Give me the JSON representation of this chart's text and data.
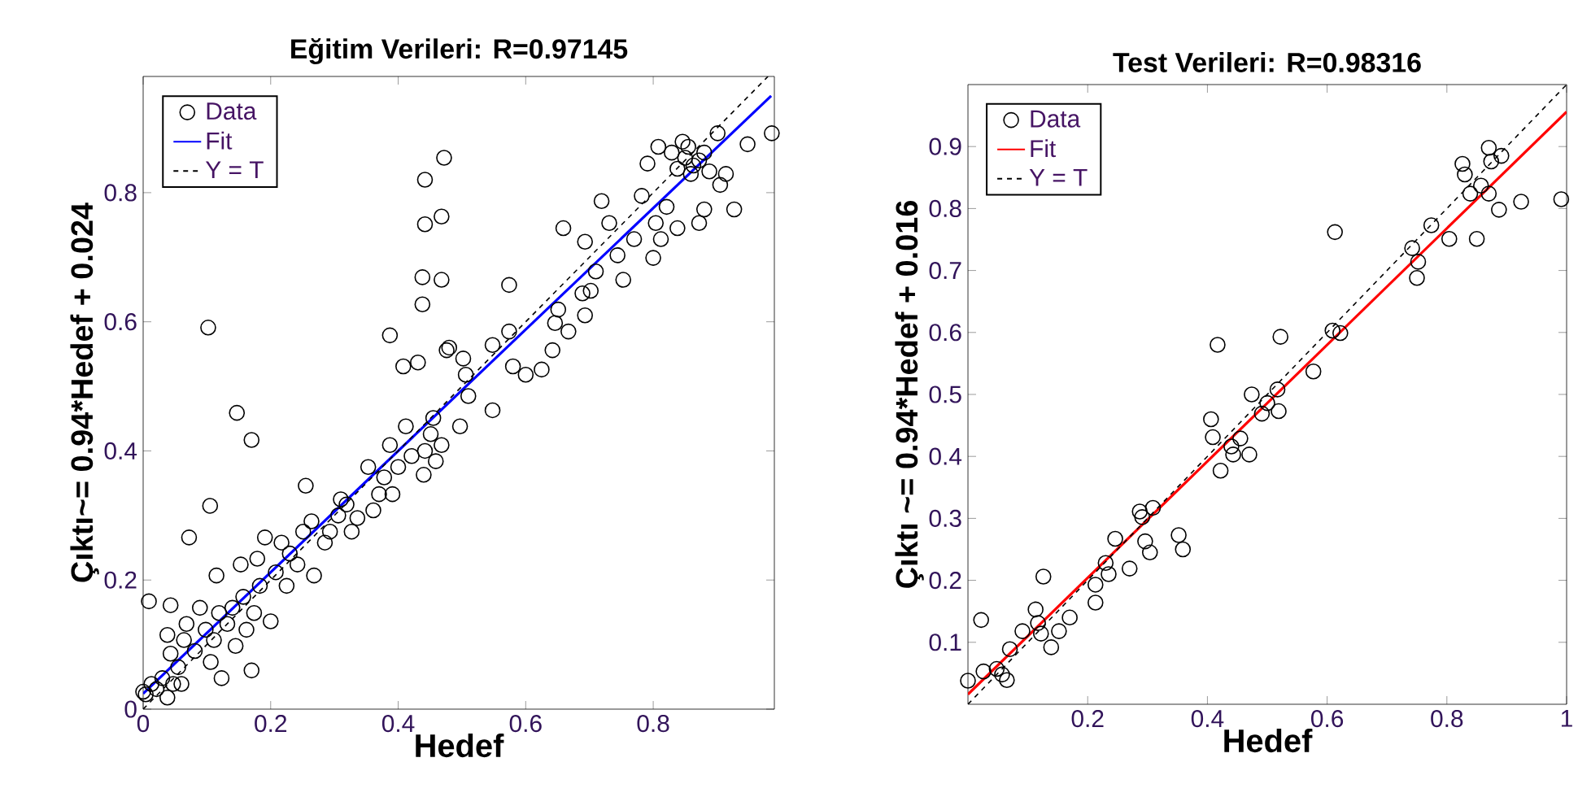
{
  "chart_data": [
    {
      "type": "scatter",
      "title": "Eğitim Verileri: R=0.97145",
      "xlabel": "Hedef",
      "ylabel": "Çıktı~= 0.94*Hedef + 0.024",
      "xlim": [
        0,
        0.99
      ],
      "ylim": [
        0,
        0.98
      ],
      "xticks": [
        0,
        0.2,
        0.4,
        0.6,
        0.8
      ],
      "yticks": [
        0,
        0.2,
        0.4,
        0.6,
        0.8
      ],
      "grid": false,
      "legend": "top left",
      "series": [
        {
          "name": "Data",
          "color": "#000000",
          "marker": "circle",
          "x": [
            0.102,
            0.147,
            0.17,
            0.105,
            0.072,
            0.255,
            0.009,
            0.043,
            0.17,
            0.123,
            0,
            0.004,
            0.021,
            0.038,
            0.013,
            0.047,
            0.03,
            0.06,
            0.043,
            0.038,
            0.064,
            0.068,
            0.081,
            0.055,
            0.089,
            0.098,
            0.106,
            0.111,
            0.115,
            0.119,
            0.132,
            0.14,
            0.145,
            0.153,
            0.157,
            0.162,
            0.174,
            0.179,
            0.183,
            0.2,
            0.191,
            0.208,
            0.217,
            0.225,
            0.23,
            0.242,
            0.251,
            0.264,
            0.268,
            0.285,
            0.293,
            0.306,
            0.31,
            0.319,
            0.327,
            0.336,
            0.353,
            0.361,
            0.37,
            0.378,
            0.387,
            0.391,
            0.4,
            0.412,
            0.421,
            0.44,
            0.442,
            0.451,
            0.459,
            0.455,
            0.468,
            0.387,
            0.408,
            0.431,
            0.438,
            0.438,
            0.468,
            0.442,
            0.468,
            0.442,
            0.472,
            0.476,
            0.48,
            0.502,
            0.506,
            0.51,
            0.497,
            0.548,
            0.574,
            0.548,
            0.574,
            0.58,
            0.6,
            0.625,
            0.642,
            0.646,
            0.651,
            0.667,
            0.693,
            0.689,
            0.702,
            0.71,
            0.659,
            0.693,
            0.719,
            0.731,
            0.744,
            0.753,
            0.77,
            0.782,
            0.791,
            0.8,
            0.804,
            0.821,
            0.812,
            0.838,
            0.808,
            0.829,
            0.838,
            0.85,
            0.855,
            0.863,
            0.872,
            0.88,
            0.888,
            0.901,
            0.905,
            0.872,
            0.88,
            0.927,
            0.914,
            0.948,
            0.986,
            0.846,
            0.859
          ],
          "values": [
            0.591,
            0.459,
            0.417,
            0.315,
            0.266,
            0.346,
            0.167,
            0.161,
            0.06,
            0.048,
            0.027,
            0.023,
            0.031,
            0.018,
            0.039,
            0.039,
            0.048,
            0.039,
            0.086,
            0.115,
            0.107,
            0.132,
            0.09,
            0.065,
            0.157,
            0.123,
            0.073,
            0.107,
            0.207,
            0.149,
            0.132,
            0.157,
            0.098,
            0.224,
            0.174,
            0.123,
            0.149,
            0.233,
            0.191,
            0.136,
            0.266,
            0.212,
            0.258,
            0.191,
            0.241,
            0.224,
            0.275,
            0.291,
            0.207,
            0.258,
            0.275,
            0.3,
            0.325,
            0.317,
            0.275,
            0.296,
            0.375,
            0.308,
            0.333,
            0.359,
            0.409,
            0.333,
            0.375,
            0.438,
            0.392,
            0.363,
            0.4,
            0.426,
            0.384,
            0.451,
            0.409,
            0.579,
            0.531,
            0.537,
            0.627,
            0.669,
            0.665,
            0.751,
            0.763,
            0.82,
            0.854,
            0.556,
            0.56,
            0.543,
            0.518,
            0.485,
            0.438,
            0.463,
            0.657,
            0.564,
            0.585,
            0.531,
            0.518,
            0.526,
            0.556,
            0.598,
            0.619,
            0.585,
            0.61,
            0.644,
            0.648,
            0.678,
            0.745,
            0.724,
            0.787,
            0.753,
            0.703,
            0.665,
            0.728,
            0.795,
            0.845,
            0.699,
            0.753,
            0.778,
            0.728,
            0.745,
            0.871,
            0.862,
            0.837,
            0.854,
            0.871,
            0.842,
            0.85,
            0.862,
            0.833,
            0.892,
            0.812,
            0.753,
            0.774,
            0.774,
            0.829,
            0.875,
            0.892,
            0.879,
            0.829
          ]
        },
        {
          "name": "Fit",
          "type": "line",
          "color": "#0000ff",
          "line_style": "solid",
          "marker": "none",
          "x": [
            0,
            0.985
          ],
          "values": [
            0.024,
            0.95
          ]
        },
        {
          "name": "Y = T",
          "type": "line",
          "color": "#000000",
          "line_style": "dashed",
          "marker": "none",
          "x": [
            0,
            0.98
          ],
          "values": [
            0,
            0.98
          ]
        }
      ]
    },
    {
      "type": "scatter",
      "title": "Test Verileri: R=0.98316",
      "xlabel": "Hedef",
      "ylabel": "Çıktı ~= 0.94*Hedef + 0.016",
      "xlim": [
        0,
        1
      ],
      "ylim": [
        0,
        1
      ],
      "xticks": [
        0.2,
        0.4,
        0.6,
        0.8,
        1
      ],
      "yticks": [
        0.1,
        0.2,
        0.3,
        0.4,
        0.5,
        0.6,
        0.7,
        0.8,
        0.9
      ],
      "grid": false,
      "legend": "top left",
      "series": [
        {
          "name": "Data",
          "color": "#000000",
          "marker": "circle",
          "x": [
            0,
            0.022,
            0.026,
            0.048,
            0.057,
            0.065,
            0.07,
            0.091,
            0.113,
            0.117,
            0.126,
            0.122,
            0.139,
            0.152,
            0.17,
            0.213,
            0.213,
            0.23,
            0.235,
            0.246,
            0.27,
            0.287,
            0.291,
            0.309,
            0.296,
            0.304,
            0.352,
            0.359,
            0.406,
            0.409,
            0.417,
            0.422,
            0.44,
            0.455,
            0.443,
            0.47,
            0.474,
            0.491,
            0.5,
            0.517,
            0.519,
            0.522,
            0.577,
            0.609,
            0.622,
            0.613,
            0.742,
            0.752,
            0.75,
            0.774,
            0.804,
            0.826,
            0.83,
            0.839,
            0.85,
            0.857,
            0.87,
            0.874,
            0.891,
            0.87,
            0.887,
            0.924,
            0.991
          ],
          "values": [
            0.038,
            0.136,
            0.053,
            0.057,
            0.048,
            0.039,
            0.089,
            0.118,
            0.153,
            0.131,
            0.206,
            0.114,
            0.092,
            0.118,
            0.14,
            0.164,
            0.193,
            0.228,
            0.21,
            0.267,
            0.219,
            0.311,
            0.302,
            0.317,
            0.263,
            0.245,
            0.273,
            0.25,
            0.46,
            0.431,
            0.58,
            0.377,
            0.416,
            0.429,
            0.403,
            0.403,
            0.5,
            0.469,
            0.486,
            0.508,
            0.473,
            0.593,
            0.537,
            0.603,
            0.599,
            0.762,
            0.736,
            0.714,
            0.688,
            0.773,
            0.751,
            0.872,
            0.855,
            0.824,
            0.751,
            0.837,
            0.898,
            0.876,
            0.885,
            0.824,
            0.798,
            0.811,
            0.815
          ]
        },
        {
          "name": "Fit",
          "type": "line",
          "color": "#ff0000",
          "line_style": "solid",
          "marker": "none",
          "x": [
            0,
            1
          ],
          "values": [
            0.016,
            0.956
          ]
        },
        {
          "name": "Y = T",
          "type": "line",
          "color": "#000000",
          "line_style": "dashed",
          "marker": "none",
          "x": [
            0,
            1
          ],
          "values": [
            0,
            1
          ]
        }
      ]
    }
  ]
}
